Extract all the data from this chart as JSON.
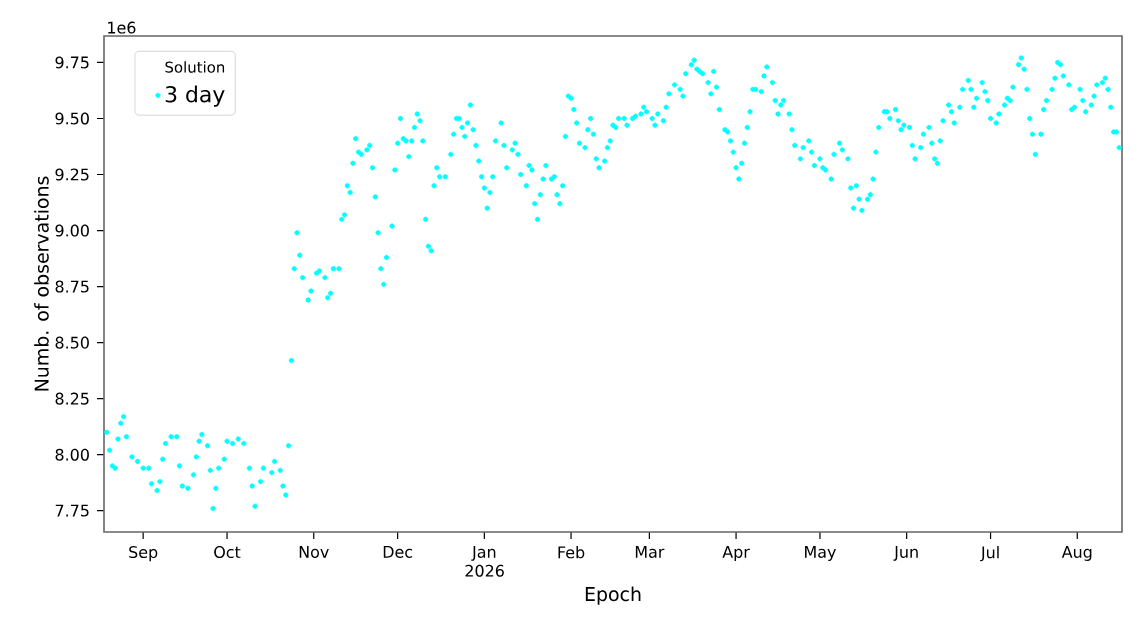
{
  "chart_data": {
    "type": "scatter",
    "xlabel": "Epoch",
    "ylabel": "Numb. of observations",
    "legend_title": "Solution",
    "legend": "top left",
    "marker": "circle",
    "grid": false,
    "annotations": [
      "1e6"
    ],
    "xlim": [
      "2025-08-18",
      "2026-08-17"
    ],
    "xticks": [
      {
        "value": "2025-09-01",
        "label": "Sep"
      },
      {
        "value": "2025-10-01",
        "label": "Oct"
      },
      {
        "value": "2025-11-01",
        "label": "Nov"
      },
      {
        "value": "2025-12-01",
        "label": "Dec"
      },
      {
        "value": "2026-01-01",
        "label": "Jan 2026"
      },
      {
        "value": "2026-02-01",
        "label": "Feb"
      },
      {
        "value": "2026-03-01",
        "label": "Mar"
      },
      {
        "value": "2026-04-01",
        "label": "Apr"
      },
      {
        "value": "2026-05-01",
        "label": "May"
      },
      {
        "value": "2026-06-01",
        "label": "Jun"
      },
      {
        "value": "2026-07-01",
        "label": "Jul"
      },
      {
        "value": "2026-08-01",
        "label": "Aug"
      }
    ],
    "ylim": [
      7.655,
      9.868
    ],
    "yticks": [
      {
        "value": 7.75,
        "label": "7.75"
      },
      {
        "value": 8.0,
        "label": "8.00"
      },
      {
        "value": 8.25,
        "label": "8.25"
      },
      {
        "value": 8.5,
        "label": "8.50"
      },
      {
        "value": 8.75,
        "label": "8.75"
      },
      {
        "value": 9.0,
        "label": "9.00"
      },
      {
        "value": 9.25,
        "label": "9.25"
      },
      {
        "value": 9.5,
        "label": "9.50"
      },
      {
        "value": 9.75,
        "label": "9.75"
      }
    ],
    "series": [
      {
        "name": "3 day",
        "color": "#00ffff",
        "x": [
          "2025-08-19",
          "2025-08-20",
          "2025-08-21",
          "2025-08-22",
          "2025-08-23",
          "2025-08-24",
          "2025-08-25",
          "2025-08-26",
          "2025-08-28",
          "2025-08-30",
          "2025-09-01",
          "2025-09-03",
          "2025-09-04",
          "2025-09-06",
          "2025-09-07",
          "2025-09-08",
          "2025-09-09",
          "2025-09-11",
          "2025-09-13",
          "2025-09-14",
          "2025-09-15",
          "2025-09-17",
          "2025-09-19",
          "2025-09-20",
          "2025-09-21",
          "2025-09-22",
          "2025-09-24",
          "2025-09-25",
          "2025-09-26",
          "2025-09-27",
          "2025-09-28",
          "2025-09-30",
          "2025-10-01",
          "2025-10-03",
          "2025-10-05",
          "2025-10-07",
          "2025-10-09",
          "2025-10-10",
          "2025-10-11",
          "2025-10-13",
          "2025-10-14",
          "2025-10-17",
          "2025-10-18",
          "2025-10-20",
          "2025-10-21",
          "2025-10-22",
          "2025-10-23",
          "2025-10-24",
          "2025-10-25",
          "2025-10-26",
          "2025-10-27",
          "2025-10-28",
          "2025-10-30",
          "2025-10-31",
          "2025-11-02",
          "2025-11-03",
          "2025-11-05",
          "2025-11-06",
          "2025-11-07",
          "2025-11-08",
          "2025-11-10",
          "2025-11-11",
          "2025-11-12",
          "2025-11-13",
          "2025-11-14",
          "2025-11-15",
          "2025-11-16",
          "2025-11-17",
          "2025-11-18",
          "2025-11-20",
          "2025-11-21",
          "2025-11-22",
          "2025-11-23",
          "2025-11-24",
          "2025-11-25",
          "2025-11-26",
          "2025-11-27",
          "2025-11-29",
          "2025-11-30",
          "2025-12-01",
          "2025-12-02",
          "2025-12-03",
          "2025-12-04",
          "2025-12-05",
          "2025-12-06",
          "2025-12-07",
          "2025-12-08",
          "2025-12-09",
          "2025-12-10",
          "2025-12-11",
          "2025-12-12",
          "2025-12-13",
          "2025-12-14",
          "2025-12-15",
          "2025-12-16",
          "2025-12-18",
          "2025-12-20",
          "2025-12-21",
          "2025-12-22",
          "2025-12-23",
          "2025-12-24",
          "2025-12-25",
          "2025-12-26",
          "2025-12-27",
          "2025-12-28",
          "2025-12-29",
          "2025-12-30",
          "2025-12-31",
          "2026-01-01",
          "2026-01-02",
          "2026-01-03",
          "2026-01-04",
          "2026-01-05",
          "2026-01-07",
          "2026-01-08",
          "2026-01-09",
          "2026-01-11",
          "2026-01-12",
          "2026-01-13",
          "2026-01-14",
          "2026-01-16",
          "2026-01-17",
          "2026-01-18",
          "2026-01-19",
          "2026-01-20",
          "2026-01-21",
          "2026-01-22",
          "2026-01-23",
          "2026-01-25",
          "2026-01-26",
          "2026-01-27",
          "2026-01-28",
          "2026-01-29",
          "2026-01-30",
          "2026-01-31",
          "2026-02-01",
          "2026-02-02",
          "2026-02-03",
          "2026-02-04",
          "2026-02-06",
          "2026-02-07",
          "2026-02-08",
          "2026-02-09",
          "2026-02-10",
          "2026-02-11",
          "2026-02-13",
          "2026-02-14",
          "2026-02-15",
          "2026-02-16",
          "2026-02-17",
          "2026-02-18",
          "2026-02-20",
          "2026-02-21",
          "2026-02-23",
          "2026-02-24",
          "2026-02-26",
          "2026-02-27",
          "2026-02-28",
          "2026-03-02",
          "2026-03-03",
          "2026-03-04",
          "2026-03-06",
          "2026-03-07",
          "2026-03-08",
          "2026-03-10",
          "2026-03-12",
          "2026-03-13",
          "2026-03-14",
          "2026-03-16",
          "2026-03-17",
          "2026-03-18",
          "2026-03-19",
          "2026-03-20",
          "2026-03-22",
          "2026-03-23",
          "2026-03-24",
          "2026-03-25",
          "2026-03-26",
          "2026-03-28",
          "2026-03-29",
          "2026-03-30",
          "2026-03-31",
          "2026-04-01",
          "2026-04-02",
          "2026-04-03",
          "2026-04-04",
          "2026-04-05",
          "2026-04-06",
          "2026-04-07",
          "2026-04-08",
          "2026-04-10",
          "2026-04-11",
          "2026-04-12",
          "2026-04-14",
          "2026-04-15",
          "2026-04-16",
          "2026-04-17",
          "2026-04-18",
          "2026-04-20",
          "2026-04-21",
          "2026-04-22",
          "2026-04-24",
          "2026-04-25",
          "2026-04-27",
          "2026-04-28",
          "2026-04-29",
          "2026-05-01",
          "2026-05-02",
          "2026-05-03",
          "2026-05-05",
          "2026-05-06",
          "2026-05-08",
          "2026-05-09",
          "2026-05-11",
          "2026-05-12",
          "2026-05-13",
          "2026-05-14",
          "2026-05-15",
          "2026-05-16",
          "2026-05-18",
          "2026-05-19",
          "2026-05-20",
          "2026-05-21",
          "2026-05-22",
          "2026-05-24",
          "2026-05-25",
          "2026-05-26",
          "2026-05-28",
          "2026-05-29",
          "2026-05-30",
          "2026-05-31",
          "2026-06-02",
          "2026-06-03",
          "2026-06-04",
          "2026-06-06",
          "2026-06-07",
          "2026-06-09",
          "2026-06-10",
          "2026-06-11",
          "2026-06-12",
          "2026-06-13",
          "2026-06-14",
          "2026-06-16",
          "2026-06-17",
          "2026-06-18",
          "2026-06-20",
          "2026-06-21",
          "2026-06-23",
          "2026-06-24",
          "2026-06-25",
          "2026-06-26",
          "2026-06-28",
          "2026-06-29",
          "2026-06-30",
          "2026-07-01",
          "2026-07-03",
          "2026-07-04",
          "2026-07-06",
          "2026-07-07",
          "2026-07-08",
          "2026-07-09",
          "2026-07-11",
          "2026-07-12",
          "2026-07-13",
          "2026-07-14",
          "2026-07-15",
          "2026-07-16",
          "2026-07-17",
          "2026-07-19",
          "2026-07-20",
          "2026-07-21",
          "2026-07-23",
          "2026-07-24",
          "2026-07-25",
          "2026-07-26",
          "2026-07-27",
          "2026-07-29",
          "2026-07-30",
          "2026-07-31",
          "2026-08-02",
          "2026-08-03",
          "2026-08-04",
          "2026-08-06",
          "2026-08-07",
          "2026-08-08",
          "2026-08-10",
          "2026-08-11",
          "2026-08-12",
          "2026-08-13",
          "2026-08-14",
          "2026-08-15",
          "2026-08-16"
        ],
        "values": [
          8.1,
          8.02,
          7.95,
          7.94,
          8.07,
          8.14,
          8.17,
          8.08,
          7.99,
          7.97,
          7.94,
          7.94,
          7.87,
          7.84,
          7.88,
          7.98,
          8.05,
          8.08,
          8.08,
          7.95,
          7.86,
          7.85,
          7.91,
          7.99,
          8.06,
          8.09,
          8.04,
          7.93,
          7.76,
          7.85,
          7.94,
          7.98,
          8.06,
          8.05,
          8.07,
          8.05,
          7.94,
          7.86,
          7.77,
          7.88,
          7.94,
          7.92,
          7.97,
          7.93,
          7.86,
          7.82,
          8.04,
          8.42,
          8.83,
          8.99,
          8.89,
          8.79,
          8.69,
          8.73,
          8.81,
          8.82,
          8.79,
          8.7,
          8.72,
          8.83,
          8.83,
          9.05,
          9.07,
          9.2,
          9.17,
          9.3,
          9.41,
          9.35,
          9.34,
          9.36,
          9.38,
          9.28,
          9.15,
          8.99,
          8.83,
          8.76,
          8.88,
          9.02,
          9.27,
          9.39,
          9.5,
          9.41,
          9.4,
          9.33,
          9.4,
          9.46,
          9.52,
          9.49,
          9.4,
          9.05,
          8.93,
          8.91,
          9.2,
          9.28,
          9.24,
          9.24,
          9.34,
          9.43,
          9.5,
          9.5,
          9.46,
          9.42,
          9.48,
          9.56,
          9.45,
          9.38,
          9.31,
          9.24,
          9.19,
          9.1,
          9.17,
          9.24,
          9.4,
          9.48,
          9.38,
          9.28,
          9.36,
          9.39,
          9.34,
          9.25,
          9.2,
          9.29,
          9.27,
          9.12,
          9.05,
          9.16,
          9.23,
          9.29,
          9.23,
          9.24,
          9.16,
          9.12,
          9.2,
          9.42,
          9.6,
          9.59,
          9.54,
          9.48,
          9.39,
          9.37,
          9.45,
          9.5,
          9.43,
          9.32,
          9.28,
          9.31,
          9.37,
          9.4,
          9.47,
          9.46,
          9.5,
          9.5,
          9.47,
          9.5,
          9.51,
          9.52,
          9.55,
          9.53,
          9.5,
          9.47,
          9.52,
          9.49,
          9.55,
          9.61,
          9.65,
          9.63,
          9.6,
          9.7,
          9.74,
          9.76,
          9.72,
          9.71,
          9.7,
          9.66,
          9.61,
          9.71,
          9.64,
          9.54,
          9.45,
          9.44,
          9.4,
          9.35,
          9.28,
          9.23,
          9.3,
          9.39,
          9.46,
          9.53,
          9.63,
          9.63,
          9.62,
          9.69,
          9.73,
          9.66,
          9.58,
          9.52,
          9.56,
          9.58,
          9.52,
          9.45,
          9.38,
          9.32,
          9.37,
          9.4,
          9.35,
          9.29,
          9.32,
          9.28,
          9.27,
          9.23,
          9.34,
          9.39,
          9.36,
          9.32,
          9.19,
          9.1,
          9.2,
          9.14,
          9.09,
          9.14,
          9.16,
          9.23,
          9.35,
          9.46,
          9.53,
          9.53,
          9.5,
          9.54,
          9.49,
          9.45,
          9.47,
          9.46,
          9.38,
          9.32,
          9.37,
          9.43,
          9.46,
          9.39,
          9.32,
          9.3,
          9.4,
          9.49,
          9.56,
          9.53,
          9.48,
          9.55,
          9.63,
          9.67,
          9.63,
          9.55,
          9.59,
          9.66,
          9.62,
          9.58,
          9.5,
          9.48,
          9.52,
          9.56,
          9.59,
          9.58,
          9.64,
          9.74,
          9.77,
          9.72,
          9.63,
          9.5,
          9.43,
          9.34,
          9.43,
          9.54,
          9.58,
          9.63,
          9.68,
          9.75,
          9.74,
          9.69,
          9.65,
          9.54,
          9.55,
          9.63,
          9.58,
          9.53,
          9.56,
          9.6,
          9.65,
          9.66,
          9.68,
          9.63,
          9.55,
          9.44,
          9.44,
          9.37
        ]
      }
    ]
  }
}
